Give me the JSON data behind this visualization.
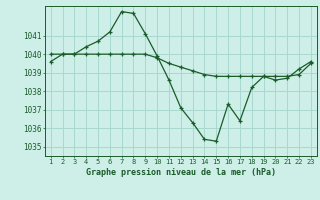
{
  "x": [
    1,
    2,
    3,
    4,
    5,
    6,
    7,
    8,
    9,
    10,
    11,
    12,
    13,
    14,
    15,
    16,
    17,
    18,
    19,
    20,
    21,
    22,
    23
  ],
  "line1": [
    1040.0,
    1040.0,
    1040.0,
    1040.0,
    1040.0,
    1040.0,
    1040.0,
    1040.0,
    1040.0,
    1039.8,
    1039.5,
    1039.3,
    1039.1,
    1038.9,
    1038.8,
    1038.8,
    1038.8,
    1038.8,
    1038.8,
    1038.8,
    1038.8,
    1038.9,
    1039.5
  ],
  "line2": [
    1039.6,
    1040.0,
    1040.0,
    1040.4,
    1040.7,
    1041.2,
    1042.3,
    1042.2,
    1041.1,
    1039.9,
    1038.6,
    1037.1,
    1036.3,
    1035.4,
    1035.3,
    1037.3,
    1036.4,
    1038.2,
    1038.8,
    1038.6,
    1038.7,
    1039.2,
    1039.6
  ],
  "bg_color": "#ceeee8",
  "grid_color": "#a8d8d0",
  "line_color": "#1a5c2a",
  "title": "Graphe pression niveau de la mer (hPa)",
  "xlabel_ticks": [
    "1",
    "2",
    "3",
    "4",
    "5",
    "6",
    "7",
    "8",
    "9",
    "10",
    "11",
    "12",
    "13",
    "14",
    "15",
    "16",
    "17",
    "18",
    "19",
    "20",
    "21",
    "22",
    "23"
  ],
  "yticks": [
    1035,
    1036,
    1037,
    1038,
    1039,
    1040,
    1041
  ],
  "ylim": [
    1034.5,
    1042.6
  ],
  "xlim": [
    0.5,
    23.5
  ]
}
